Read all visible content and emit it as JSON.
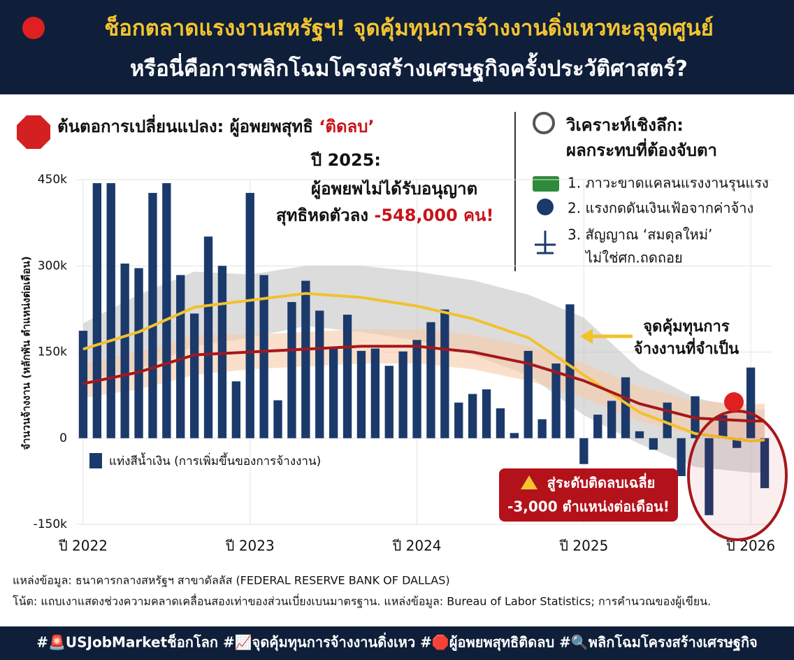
{
  "header": {
    "title_lines": [
      "ช็อกตลาดแรงงานสหรัฐฯ! จุดคุ้มทุนการจ้างงานดิ่งเหวทะลุจุดศูนย์",
      "หรือนี่คือการพลิกโฉมโครงสร้างเศรษฐกิจครั้งประวัติศาสตร์?"
    ]
  },
  "left_panel": {
    "title": "ต้นตอการเปลี่ยนแปลง: ผู้อพยพสุทธิ ",
    "title_highlight": "‘ติดลบ’",
    "callout": {
      "year": "ปี 2025:",
      "line1": "ผู้อพยพไม่ได้รับอนุญาต",
      "line2": "สุทธิหดตัวลง ",
      "highlight": "-548,000 คน!"
    }
  },
  "right_panel": {
    "title_lines": [
      "วิเคราะห์เชิงลึก:",
      "ผลกระทบที่ต้องจับตา"
    ],
    "items": [
      "1. ภาวะขาดแคลนแรงงานรุนแรง",
      "2. แรงกดดันเงินเฟ้อจากค่าจ้าง",
      "3. สัญญาณ ‘สมดุลใหม่’"
    ],
    "item3_continued": "ไม่ใช่ศก.ถดถอย"
  },
  "chart_data": {
    "type": "bar",
    "y_label": "จำนวนจ้างงาน (หลักพัน ตำแหน่งต่อเดือน)",
    "categories": [
      "ปี 2022",
      null,
      null,
      null,
      null,
      null,
      null,
      null,
      null,
      null,
      null,
      null,
      "ปี 2023",
      null,
      null,
      null,
      null,
      null,
      null,
      null,
      null,
      null,
      null,
      null,
      "ปี 2024",
      null,
      null,
      null,
      null,
      null,
      null,
      null,
      null,
      null,
      null,
      null,
      "ปี 2025",
      null,
      null,
      null,
      null,
      null,
      null,
      null,
      null,
      null,
      null,
      null,
      "ปี 2026",
      null
    ],
    "series": [
      {
        "name": "แท่งสีน้ำเงิน (การเพิ่มขึ้นของการจ้างงาน)",
        "color": "#1b3a6b",
        "values": [
          187,
          444,
          444,
          304,
          296,
          427,
          444,
          284,
          217,
          351,
          300,
          99,
          427,
          284,
          66,
          237,
          274,
          222,
          159,
          215,
          152,
          156,
          126,
          151,
          171,
          202,
          224,
          62,
          77,
          85,
          52,
          9,
          152,
          33,
          130,
          233,
          -45,
          41,
          65,
          106,
          12,
          -20,
          62,
          -66,
          73,
          -134,
          40,
          -17,
          123,
          -87
        ]
      }
    ],
    "trend_lines": [
      {
        "type": "line",
        "color": "#f2c12e",
        "band_color": "#c4c4c4",
        "x": [
          0,
          4,
          8,
          12,
          16,
          20,
          24,
          28,
          32,
          36,
          40,
          44,
          48,
          49
        ],
        "values": [
          155,
          185,
          228,
          240,
          252,
          245,
          230,
          208,
          175,
          110,
          45,
          8,
          -5,
          -3
        ],
        "band_upper": [
          200,
          250,
          290,
          285,
          300,
          300,
          290,
          275,
          250,
          210,
          120,
          70,
          50,
          50
        ],
        "band_lower": [
          100,
          120,
          160,
          175,
          195,
          185,
          170,
          145,
          110,
          40,
          -10,
          -50,
          -60,
          -60
        ]
      },
      {
        "type": "line",
        "color": "#a5171c",
        "band_color": "#f6c9a8",
        "x": [
          0,
          4,
          8,
          12,
          16,
          20,
          24,
          28,
          32,
          36,
          40,
          44,
          48,
          49
        ],
        "values": [
          95,
          115,
          145,
          150,
          155,
          160,
          160,
          150,
          130,
          100,
          60,
          35,
          30,
          30
        ],
        "band_upper": [
          130,
          150,
          180,
          180,
          185,
          190,
          190,
          180,
          160,
          130,
          90,
          65,
          60,
          60
        ],
        "band_lower": [
          70,
          85,
          110,
          120,
          125,
          130,
          130,
          120,
          100,
          70,
          30,
          5,
          0,
          0
        ]
      }
    ],
    "ylim": [
      -150,
      450
    ],
    "yticks": [
      {
        "value": -150,
        "label": "-150k"
      },
      0,
      {
        "value": 150,
        "label": "150k"
      },
      {
        "value": 300,
        "label": "300k"
      },
      {
        "value": 450,
        "label": "450k"
      }
    ],
    "grid": true,
    "annotations": {
      "breakeven": [
        "จุดคุ้มทุนการ",
        "จ้างงานที่จำเป็น"
      ],
      "alert": [
        "สู่ระดับติดลบเฉลี่ย",
        "-3,000 ตำแหน่งต่อเดือน!"
      ]
    }
  },
  "sources": [
    "แหล่งข้อมูล: ธนาคารกลางสหรัฐฯ สาขาดัลลัส (FEDERAL RESERVE BANK OF DALLAS)",
    "โน้ต: แถบเงาแสดงช่วงความคลาดเคลื่อนสองเท่าของส่วนเบี่ยงเบนมาตรฐาน. แหล่งข้อมูล: Bureau of Labor Statistics; การคำนวณของผู้เขียน."
  ],
  "footer": "#🚨USJobMarketช็อกโลก #📈จุดคุ้มทุนการจ้างงานดิ่งเหว #🛑ผู้อพยพสุทธิติดลบ #🔍พลิกโฉมโครงสร้างเศรษฐกิจ"
}
